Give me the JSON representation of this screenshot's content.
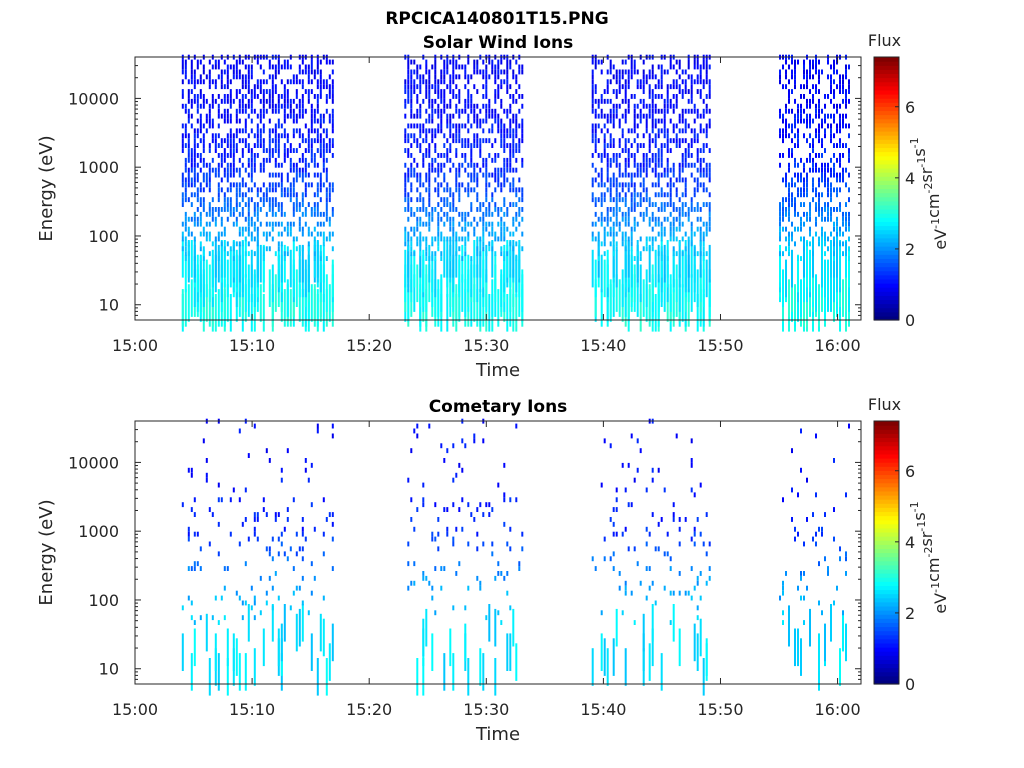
{
  "figure": {
    "title": "RPCICA140801T15.PNG"
  },
  "chart_data": [
    {
      "type": "heatmap",
      "title": "Solar Wind Ions",
      "xlabel": "Time",
      "ylabel": "Energy (eV)",
      "xlim": [
        "15:00",
        "16:02"
      ],
      "x_ticks": [
        "15:00",
        "15:10",
        "15:20",
        "15:30",
        "15:40",
        "15:50",
        "16:00"
      ],
      "yscale": "log",
      "ylim": [
        6,
        40000
      ],
      "y_ticks": [
        "10",
        "100",
        "1000",
        "10000"
      ],
      "colorbar": {
        "title": "Flux",
        "label": "eV-1cm-2sr-1s-1",
        "ticks": [
          "0",
          "2",
          "4",
          "6"
        ],
        "range": [
          0,
          7.4
        ],
        "colormap": "jet"
      },
      "active_intervals": [
        {
          "start": "15:04",
          "end": "15:17"
        },
        {
          "start": "15:23",
          "end": "15:33"
        },
        {
          "start": "15:39",
          "end": "15:49"
        },
        {
          "start": "15:55",
          "end": "16:01"
        }
      ],
      "energy_flux_profile": [
        {
          "energy": 10,
          "flux": 2.9
        },
        {
          "energy": 25,
          "flux": 2.6
        },
        {
          "energy": 60,
          "flux": 2.4
        },
        {
          "energy": 100,
          "flux": 2.2
        },
        {
          "energy": 200,
          "flux": 1.8
        },
        {
          "energy": 500,
          "flux": 1.4
        },
        {
          "energy": 1000,
          "flux": 1.2
        },
        {
          "energy": 5000,
          "flux": 1.0
        },
        {
          "energy": 30000,
          "flux": 0.9
        }
      ],
      "grid": false
    },
    {
      "type": "heatmap",
      "title": "Cometary Ions",
      "xlabel": "Time",
      "ylabel": "Energy (eV)",
      "xlim": [
        "15:00",
        "16:02"
      ],
      "x_ticks": [
        "15:00",
        "15:10",
        "15:20",
        "15:30",
        "15:40",
        "15:50",
        "16:00"
      ],
      "yscale": "log",
      "ylim": [
        6,
        40000
      ],
      "y_ticks": [
        "10",
        "100",
        "1000",
        "10000"
      ],
      "colorbar": {
        "title": "Flux",
        "label": "eV-1cm-2sr-1s-1",
        "ticks": [
          "0",
          "2",
          "4",
          "6"
        ],
        "range": [
          0,
          7.4
        ],
        "colormap": "jet"
      },
      "active_intervals": [
        {
          "start": "15:04",
          "end": "15:17"
        },
        {
          "start": "15:23",
          "end": "15:33"
        },
        {
          "start": "15:39",
          "end": "15:49"
        },
        {
          "start": "15:55",
          "end": "16:01"
        }
      ],
      "energy_flux_profile": [
        {
          "energy": 10,
          "flux": 2.6
        },
        {
          "energy": 40,
          "flux": 2.5
        },
        {
          "energy": 100,
          "flux": 2.2
        },
        {
          "energy": 200,
          "flux": 2.0
        },
        {
          "energy": 1000,
          "flux": 1.2
        },
        {
          "energy": 10000,
          "flux": 1.0
        },
        {
          "energy": 30000,
          "flux": 1.0
        }
      ],
      "grid": false
    }
  ]
}
